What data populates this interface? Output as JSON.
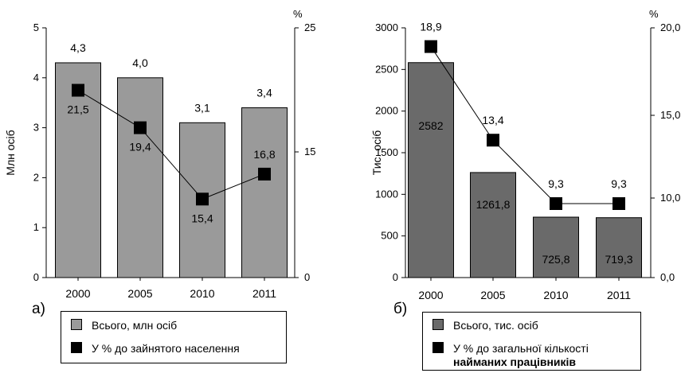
{
  "colors": {
    "bar_a": "#9a9a9a",
    "bar_b": "#6a6a6a",
    "marker": "#000000",
    "line": "#000000",
    "axis": "#000000"
  },
  "panels": {
    "a": {
      "label": "а)",
      "legend": {
        "bars": "Всього, млн осіб",
        "line": "У % до зайнятого населення"
      }
    },
    "b": {
      "label": "б)",
      "legend": {
        "bars": "Всього, тис. осіб",
        "line_1": "У % до загальної кількості",
        "line_2": "найманих працівників"
      }
    }
  },
  "chart_data": [
    {
      "type": "bar",
      "categories": [
        "2000",
        "2005",
        "2010",
        "2011"
      ],
      "ylabel": "Млн осіб",
      "ylim": [
        0,
        5
      ],
      "yticks": [
        "0",
        "1",
        "2",
        "3",
        "4",
        "5"
      ],
      "y2label": "%",
      "y2lim": [
        11,
        25
      ],
      "y2ticks": [
        "0",
        "15",
        "25"
      ],
      "series": [
        {
          "name": "Всього, млн осіб",
          "kind": "bar",
          "values": [
            4.3,
            4.0,
            3.1,
            3.4
          ],
          "labels": [
            "4,3",
            "4,0",
            "3,1",
            "3,4"
          ]
        },
        {
          "name": "У % до зайнятого населення",
          "kind": "line",
          "axis": "secondary",
          "values": [
            21.5,
            19.4,
            15.4,
            16.8
          ],
          "labels": [
            "21,5",
            "19,4",
            "15,4",
            "16,8"
          ]
        }
      ]
    },
    {
      "type": "bar",
      "categories": [
        "2000",
        "2005",
        "2010",
        "2011"
      ],
      "ylabel": "Тис. осіб",
      "ylim": [
        0,
        3000
      ],
      "yticks": [
        "0",
        "500",
        "1000",
        "1500",
        "2000",
        "2500",
        "3000"
      ],
      "y2label": "%",
      "y2lim": [
        0,
        20
      ],
      "y2ticks": [
        "0,0",
        "10,0",
        "15,0",
        "20,0"
      ],
      "series": [
        {
          "name": "Всього, тис. осіб",
          "kind": "bar",
          "values": [
            2582,
            1261.8,
            725.8,
            719.3
          ],
          "labels": [
            "2582",
            "1261,8",
            "725,8",
            "719,3"
          ]
        },
        {
          "name": "У % до загальної кількості найманих працівників",
          "kind": "line",
          "axis": "secondary",
          "values": [
            18.9,
            13.4,
            9.3,
            9.3
          ],
          "labels": [
            "18,9",
            "13,4",
            "9,3",
            "9,3"
          ]
        }
      ]
    }
  ]
}
